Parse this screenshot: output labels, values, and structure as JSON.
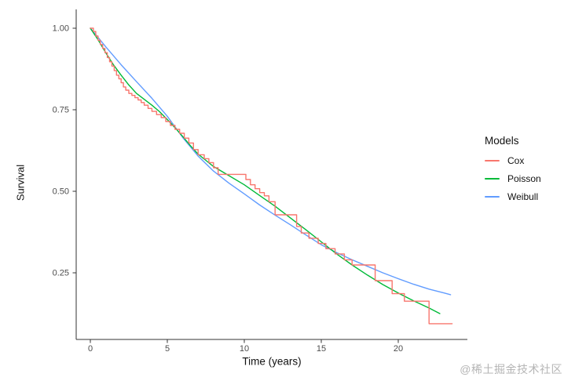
{
  "watermark": {
    "text": "@稀土掘金技术社区"
  },
  "chart_data": {
    "type": "line",
    "title": "",
    "xlabel": "Time (years)",
    "ylabel": "Survival",
    "grid": false,
    "legend": {
      "title": "Models",
      "position": "right"
    },
    "axes": {
      "x": {
        "domain": [
          0,
          20
        ],
        "px": [
          115,
          507
        ],
        "ticks": [
          0,
          5,
          10,
          15,
          20
        ],
        "tick_labels": [
          "0",
          "5",
          "10",
          "15",
          "20"
        ],
        "line": {
          "x1": 97,
          "y1": 433,
          "x2": 595,
          "y2": 433
        }
      },
      "y": {
        "domain": [
          1,
          0
        ],
        "px": [
          36,
          452
        ],
        "ticks": [
          1.0,
          0.75,
          0.5,
          0.25
        ],
        "tick_labels": [
          "1.00",
          "0.75",
          "0.50",
          "0.25"
        ],
        "line": {
          "x1": 97,
          "y1": 12,
          "x2": 97,
          "y2": 433
        }
      }
    },
    "series": [
      {
        "name": "Weibull",
        "color": "#619CFF",
        "style": "line",
        "points": [
          [
            0,
            1.0
          ],
          [
            0.5,
            0.972
          ],
          [
            1,
            0.943
          ],
          [
            2,
            0.888
          ],
          [
            3,
            0.836
          ],
          [
            4,
            0.785
          ],
          [
            5,
            0.73
          ],
          [
            6,
            0.665
          ],
          [
            7,
            0.608
          ],
          [
            8,
            0.562
          ],
          [
            9,
            0.525
          ],
          [
            10,
            0.492
          ],
          [
            11,
            0.458
          ],
          [
            12,
            0.427
          ],
          [
            13,
            0.397
          ],
          [
            14,
            0.366
          ],
          [
            15,
            0.336
          ],
          [
            16,
            0.312
          ],
          [
            17,
            0.29
          ],
          [
            18,
            0.27
          ],
          [
            19,
            0.25
          ],
          [
            20,
            0.232
          ],
          [
            21,
            0.215
          ],
          [
            22,
            0.2
          ],
          [
            23,
            0.188
          ],
          [
            23.4,
            0.183
          ]
        ]
      },
      {
        "name": "Poisson",
        "color": "#00BA38",
        "style": "line",
        "points": [
          [
            0,
            1.0
          ],
          [
            0.5,
            0.965
          ],
          [
            1,
            0.925
          ],
          [
            1.5,
            0.888
          ],
          [
            2,
            0.856
          ],
          [
            2.5,
            0.826
          ],
          [
            3,
            0.8
          ],
          [
            3.5,
            0.782
          ],
          [
            4,
            0.764
          ],
          [
            4.5,
            0.744
          ],
          [
            5,
            0.72
          ],
          [
            5.5,
            0.695
          ],
          [
            6,
            0.668
          ],
          [
            6.5,
            0.64
          ],
          [
            7,
            0.614
          ],
          [
            7.5,
            0.595
          ],
          [
            8,
            0.576
          ],
          [
            9,
            0.548
          ],
          [
            10,
            0.52
          ],
          [
            11,
            0.487
          ],
          [
            12,
            0.454
          ],
          [
            13,
            0.418
          ],
          [
            14,
            0.382
          ],
          [
            15,
            0.345
          ],
          [
            16,
            0.308
          ],
          [
            17,
            0.274
          ],
          [
            18,
            0.243
          ],
          [
            19,
            0.214
          ],
          [
            20,
            0.188
          ],
          [
            21,
            0.164
          ],
          [
            22,
            0.142
          ],
          [
            22.7,
            0.125
          ]
        ]
      },
      {
        "name": "Cox",
        "color": "#F8766D",
        "style": "step",
        "points": [
          [
            0,
            1.0
          ],
          [
            0.2,
            0.99
          ],
          [
            0.35,
            0.976
          ],
          [
            0.5,
            0.963
          ],
          [
            0.65,
            0.95
          ],
          [
            0.8,
            0.938
          ],
          [
            0.95,
            0.925
          ],
          [
            1.1,
            0.91
          ],
          [
            1.25,
            0.897
          ],
          [
            1.4,
            0.884
          ],
          [
            1.55,
            0.87
          ],
          [
            1.7,
            0.856
          ],
          [
            1.85,
            0.845
          ],
          [
            2.0,
            0.833
          ],
          [
            2.15,
            0.82
          ],
          [
            2.3,
            0.81
          ],
          [
            2.5,
            0.8
          ],
          [
            2.7,
            0.794
          ],
          [
            2.9,
            0.787
          ],
          [
            3.1,
            0.78
          ],
          [
            3.3,
            0.772
          ],
          [
            3.5,
            0.764
          ],
          [
            3.75,
            0.754
          ],
          [
            4.0,
            0.745
          ],
          [
            4.3,
            0.735
          ],
          [
            4.6,
            0.726
          ],
          [
            4.9,
            0.714
          ],
          [
            5.2,
            0.702
          ],
          [
            5.5,
            0.69
          ],
          [
            5.8,
            0.678
          ],
          [
            6.1,
            0.663
          ],
          [
            6.4,
            0.648
          ],
          [
            6.7,
            0.628
          ],
          [
            7.0,
            0.612
          ],
          [
            7.4,
            0.6
          ],
          [
            7.7,
            0.588
          ],
          [
            8.0,
            0.572
          ],
          [
            8.3,
            0.552
          ],
          [
            10.1,
            0.536
          ],
          [
            10.4,
            0.52
          ],
          [
            10.7,
            0.508
          ],
          [
            11.0,
            0.496
          ],
          [
            11.3,
            0.486
          ],
          [
            11.6,
            0.468
          ],
          [
            12.0,
            0.428
          ],
          [
            13.4,
            0.392
          ],
          [
            13.7,
            0.372
          ],
          [
            14.2,
            0.356
          ],
          [
            14.8,
            0.34
          ],
          [
            15.3,
            0.324
          ],
          [
            15.9,
            0.308
          ],
          [
            16.5,
            0.29
          ],
          [
            17.0,
            0.274
          ],
          [
            18.5,
            0.226
          ],
          [
            19.6,
            0.186
          ],
          [
            20.4,
            0.163
          ],
          [
            22.0,
            0.094
          ],
          [
            23.5,
            0.094
          ]
        ]
      }
    ]
  }
}
